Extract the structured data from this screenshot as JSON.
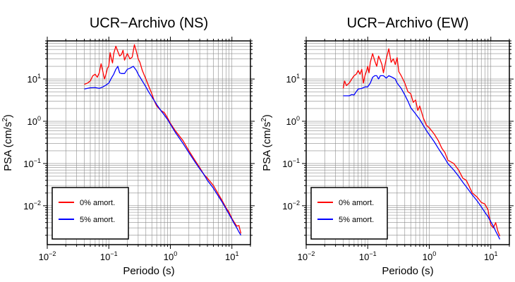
{
  "chart_data": [
    {
      "type": "line",
      "title": "UCR−Archivo (NS)",
      "xlabel": "Periodo (s)",
      "ylabel_main": "PSA (cm/s",
      "ylabel_sup": "2",
      "ylabel_close": ")",
      "xscale": "log",
      "yscale": "log",
      "xlim": [
        0.01,
        20
      ],
      "ylim": [
        0.0012,
        80
      ],
      "grid": true,
      "legend_position": "bottom-left",
      "x_ticks": [
        {
          "value": 0.01,
          "base": "10",
          "exp": "−2"
        },
        {
          "value": 0.1,
          "base": "10",
          "exp": "−1"
        },
        {
          "value": 1,
          "base": "10",
          "exp": "0"
        },
        {
          "value": 10,
          "base": "10",
          "exp": "1"
        }
      ],
      "y_ticks": [
        {
          "value": 0.01,
          "base": "10",
          "exp": "−2"
        },
        {
          "value": 0.1,
          "base": "10",
          "exp": "−1"
        },
        {
          "value": 1,
          "base": "10",
          "exp": "0"
        },
        {
          "value": 10,
          "base": "10",
          "exp": "1"
        }
      ],
      "series": [
        {
          "name": "0% amort.",
          "color": "#ff0000",
          "x": [
            0.04,
            0.045,
            0.05,
            0.055,
            0.06,
            0.065,
            0.07,
            0.075,
            0.08,
            0.085,
            0.09,
            0.095,
            0.1,
            0.105,
            0.11,
            0.115,
            0.12,
            0.13,
            0.14,
            0.15,
            0.16,
            0.17,
            0.18,
            0.2,
            0.22,
            0.24,
            0.26,
            0.28,
            0.3,
            0.32,
            0.35,
            0.4,
            0.45,
            0.5,
            0.55,
            0.6,
            0.7,
            0.8,
            0.9,
            1.0,
            1.2,
            1.4,
            1.6,
            1.8,
            2.0,
            2.5,
            3.0,
            3.5,
            4.0,
            5.0,
            6.0,
            7.0,
            8.0,
            9.0,
            10.0,
            11.0,
            12.0,
            13.0,
            14.0
          ],
          "y": [
            7.5,
            8,
            9,
            12,
            13,
            11,
            14,
            23,
            15,
            10,
            13,
            18,
            20,
            42,
            30,
            24,
            40,
            60,
            45,
            35,
            38,
            48,
            28,
            40,
            30,
            33,
            65,
            45,
            30,
            25,
            16,
            10,
            6.5,
            4.5,
            3.0,
            2.3,
            1.8,
            1.6,
            1.2,
            0.9,
            0.6,
            0.45,
            0.35,
            0.26,
            0.2,
            0.12,
            0.08,
            0.055,
            0.045,
            0.03,
            0.019,
            0.013,
            0.009,
            0.007,
            0.005,
            0.004,
            0.0033,
            0.0034,
            0.0022
          ]
        },
        {
          "name": "5% amort.",
          "color": "#0000ff",
          "x": [
            0.04,
            0.05,
            0.06,
            0.07,
            0.08,
            0.09,
            0.1,
            0.11,
            0.12,
            0.13,
            0.14,
            0.15,
            0.16,
            0.18,
            0.2,
            0.22,
            0.25,
            0.28,
            0.3,
            0.35,
            0.4,
            0.45,
            0.5,
            0.6,
            0.7,
            0.8,
            0.9,
            1.0,
            1.2,
            1.4,
            1.6,
            1.8,
            2.0,
            2.5,
            3.0,
            3.5,
            4.0,
            5.0,
            6.0,
            7.0,
            8.0,
            9.0,
            10.0,
            11.0,
            12.0,
            13.0,
            14.0
          ],
          "y": [
            5.8,
            6.2,
            6.3,
            6.0,
            6.5,
            7.2,
            8.0,
            10.5,
            13,
            17,
            20,
            14,
            13.5,
            13.5,
            17,
            18,
            20,
            16,
            13,
            9,
            6.5,
            4.8,
            3.8,
            2.5,
            1.8,
            1.4,
            1.1,
            0.85,
            0.55,
            0.4,
            0.3,
            0.23,
            0.18,
            0.11,
            0.075,
            0.055,
            0.04,
            0.026,
            0.017,
            0.012,
            0.0085,
            0.0063,
            0.0048,
            0.0037,
            0.003,
            0.0024,
            0.002
          ]
        }
      ]
    },
    {
      "type": "line",
      "title": "UCR−Archivo (EW)",
      "xlabel": "Periodo (s)",
      "ylabel_main": "PSA (cm/s",
      "ylabel_sup": "2",
      "ylabel_close": ")",
      "xscale": "log",
      "yscale": "log",
      "xlim": [
        0.01,
        20
      ],
      "ylim": [
        0.0012,
        80
      ],
      "grid": true,
      "legend_position": "bottom-left",
      "x_ticks": [
        {
          "value": 0.01,
          "base": "10",
          "exp": "−2"
        },
        {
          "value": 0.1,
          "base": "10",
          "exp": "−1"
        },
        {
          "value": 1,
          "base": "10",
          "exp": "0"
        },
        {
          "value": 10,
          "base": "10",
          "exp": "1"
        }
      ],
      "y_ticks": [
        {
          "value": 0.01,
          "base": "10",
          "exp": "−2"
        },
        {
          "value": 0.1,
          "base": "10",
          "exp": "−1"
        },
        {
          "value": 1,
          "base": "10",
          "exp": "0"
        },
        {
          "value": 10,
          "base": "10",
          "exp": "1"
        }
      ],
      "series": [
        {
          "name": "0% amort.",
          "color": "#ff0000",
          "x": [
            0.04,
            0.042,
            0.045,
            0.05,
            0.055,
            0.06,
            0.065,
            0.07,
            0.075,
            0.08,
            0.085,
            0.09,
            0.095,
            0.1,
            0.105,
            0.11,
            0.12,
            0.13,
            0.14,
            0.15,
            0.16,
            0.17,
            0.18,
            0.2,
            0.22,
            0.24,
            0.26,
            0.28,
            0.3,
            0.32,
            0.35,
            0.4,
            0.45,
            0.5,
            0.55,
            0.6,
            0.65,
            0.7,
            0.8,
            0.9,
            1.0,
            1.2,
            1.4,
            1.6,
            1.8,
            2.0,
            2.5,
            3.0,
            3.5,
            4.0,
            5.0,
            6.0,
            7.0,
            8.0,
            9.0,
            10.0,
            11.0,
            12.0,
            13.0,
            14.0
          ],
          "y": [
            6,
            9,
            7,
            8,
            10,
            12,
            13,
            16,
            13,
            17,
            8,
            12,
            15,
            20,
            14,
            25,
            40,
            27,
            20,
            35,
            28,
            22,
            14,
            30,
            52,
            25,
            30,
            22,
            32,
            15,
            12,
            8,
            5,
            4.5,
            2.8,
            3.2,
            1.8,
            2.3,
            1.2,
            0.8,
            0.7,
            0.5,
            0.35,
            0.23,
            0.18,
            0.12,
            0.1,
            0.07,
            0.045,
            0.04,
            0.02,
            0.016,
            0.012,
            0.011,
            0.008,
            0.0035,
            0.003,
            0.004,
            0.0025,
            0.0019
          ]
        },
        {
          "name": "5% amort.",
          "color": "#0000ff",
          "x": [
            0.04,
            0.05,
            0.055,
            0.06,
            0.065,
            0.07,
            0.08,
            0.09,
            0.1,
            0.11,
            0.12,
            0.13,
            0.14,
            0.15,
            0.16,
            0.18,
            0.2,
            0.22,
            0.25,
            0.28,
            0.3,
            0.35,
            0.4,
            0.45,
            0.5,
            0.6,
            0.7,
            0.8,
            0.9,
            1.0,
            1.2,
            1.4,
            1.6,
            1.8,
            2.0,
            2.5,
            3.0,
            3.5,
            4.0,
            5.0,
            6.0,
            7.0,
            8.0,
            9.0,
            10.0,
            11.0,
            12.0,
            13.0,
            14.0
          ],
          "y": [
            4,
            4,
            4.3,
            4.2,
            5,
            5.8,
            6,
            6.5,
            6.5,
            8,
            11,
            12,
            12,
            10,
            12,
            12,
            10.5,
            12,
            11,
            10,
            8,
            6,
            4.2,
            3,
            2.1,
            1.5,
            1.1,
            0.8,
            0.6,
            0.48,
            0.33,
            0.23,
            0.17,
            0.13,
            0.1,
            0.07,
            0.05,
            0.036,
            0.028,
            0.018,
            0.013,
            0.0095,
            0.007,
            0.0055,
            0.0042,
            0.0033,
            0.0025,
            0.002,
            0.0016
          ]
        }
      ]
    }
  ]
}
